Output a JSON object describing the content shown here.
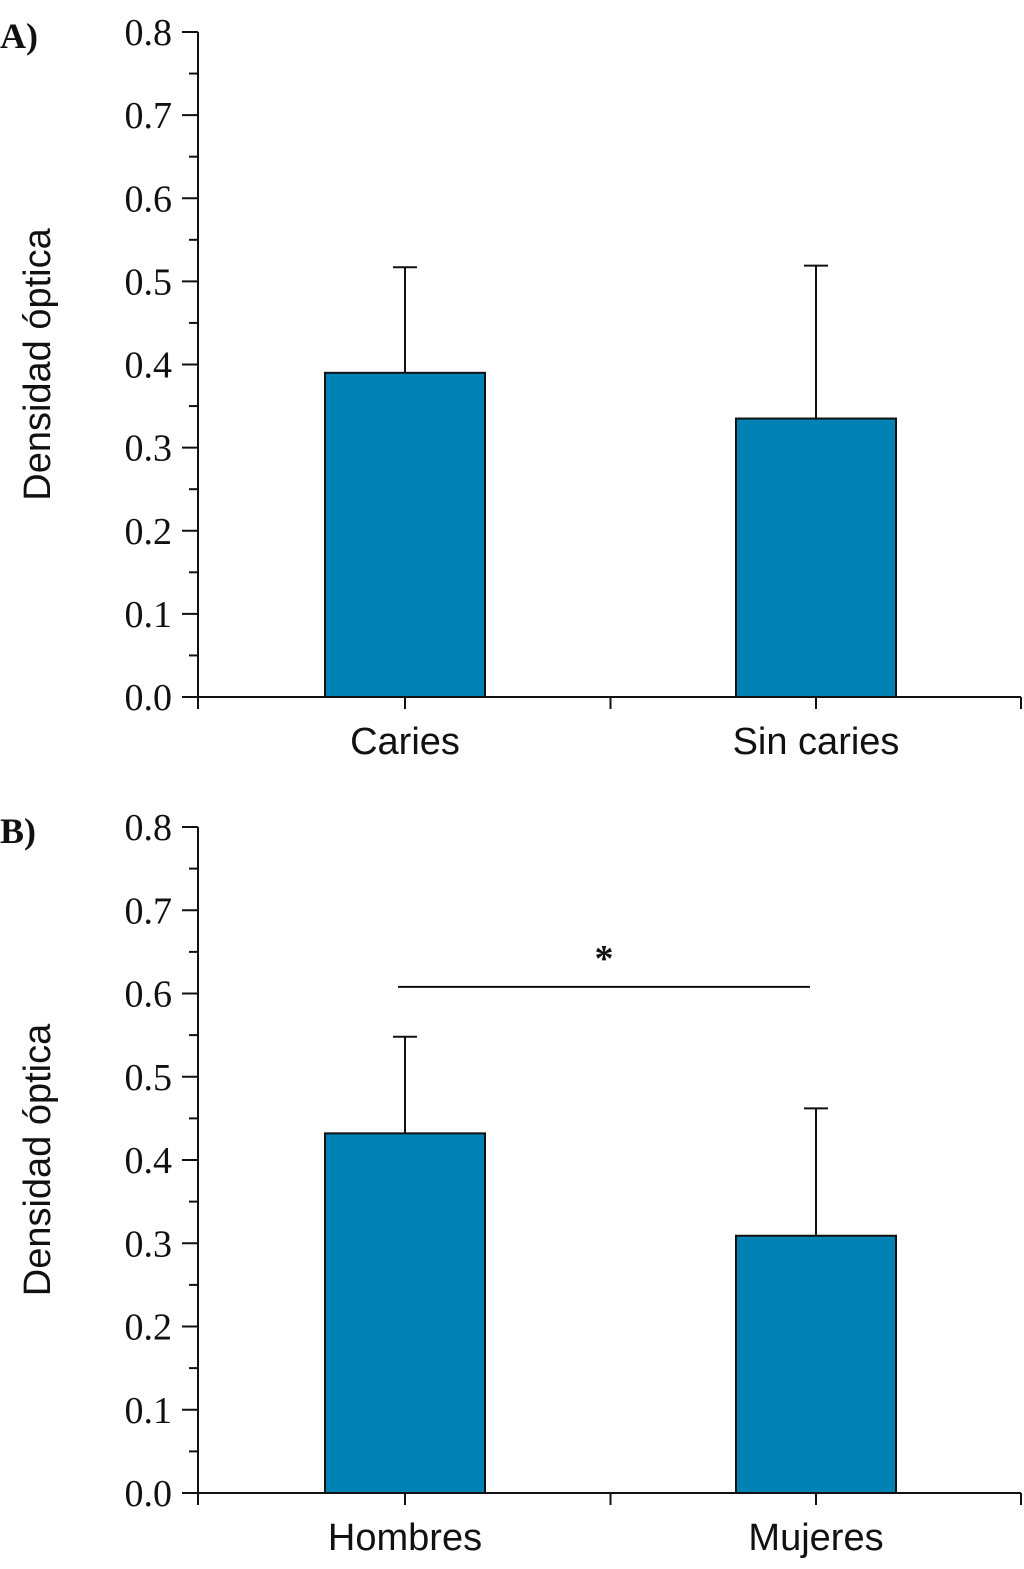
{
  "colors": {
    "bar": "#0083b4",
    "axis": "#111111"
  },
  "chart_data": [
    {
      "type": "bar",
      "panel_label": "A)",
      "title": "",
      "xlabel": "",
      "ylabel": "Densidad óptica",
      "ylim": [
        0,
        0.8
      ],
      "yticks": [
        "0.0",
        "0.1",
        "0.2",
        "0.3",
        "0.4",
        "0.5",
        "0.6",
        "0.7",
        "0.8"
      ],
      "categories": [
        "Caries",
        "Sin caries"
      ],
      "values": [
        0.39,
        0.335
      ],
      "error_upper": [
        0.517,
        0.519
      ],
      "grid": false,
      "significance": null
    },
    {
      "type": "bar",
      "panel_label": "B)",
      "title": "",
      "xlabel": "",
      "ylabel": "Densidad óptica",
      "ylim": [
        0,
        0.8
      ],
      "yticks": [
        "0.0",
        "0.1",
        "0.2",
        "0.3",
        "0.4",
        "0.5",
        "0.6",
        "0.7",
        "0.8"
      ],
      "categories": [
        "Hombres",
        "Mujeres"
      ],
      "values": [
        0.432,
        0.309
      ],
      "error_upper": [
        0.548,
        0.462
      ],
      "grid": false,
      "significance": {
        "marker": "*",
        "level": 0.608,
        "between": [
          "Hombres",
          "Mujeres"
        ]
      }
    }
  ]
}
